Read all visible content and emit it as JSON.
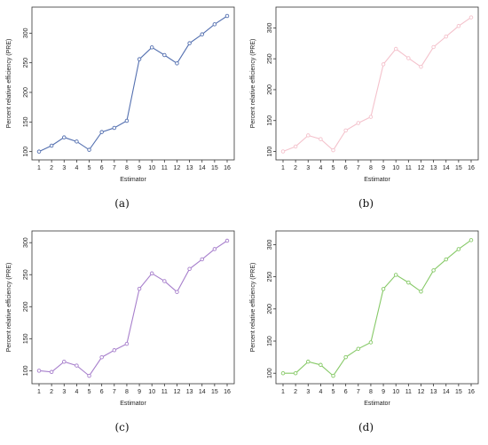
{
  "chart_data": [
    {
      "type": "line",
      "caption": "(a)",
      "color": "#5470b0",
      "xlabel": "Estimator",
      "ylabel": "Percent relative efficiency (PRE)",
      "x": [
        1,
        2,
        3,
        4,
        5,
        6,
        7,
        8,
        9,
        10,
        11,
        12,
        13,
        14,
        15,
        16
      ],
      "values": [
        100,
        110,
        124,
        117,
        103,
        133,
        140,
        152,
        256,
        276,
        263,
        249,
        283,
        298,
        315,
        329
      ],
      "xlim": [
        1,
        16
      ],
      "ylim": [
        95,
        335
      ],
      "yticks": [
        100,
        150,
        200,
        250,
        300
      ],
      "grid": false,
      "marker": "circle-open"
    },
    {
      "type": "line",
      "caption": "(b)",
      "color": "#f4c2cc",
      "xlabel": "Estimator",
      "ylabel": "Percent relative efficiency (PRE)",
      "x": [
        1,
        2,
        3,
        4,
        5,
        6,
        7,
        8,
        9,
        10,
        11,
        12,
        13,
        14,
        15,
        16
      ],
      "values": [
        100,
        108,
        126,
        120,
        102,
        134,
        146,
        156,
        241,
        266,
        251,
        237,
        269,
        286,
        303,
        317
      ],
      "xlim": [
        1,
        16
      ],
      "ylim": [
        95,
        325
      ],
      "yticks": [
        100,
        150,
        200,
        250,
        300
      ],
      "grid": false,
      "marker": "circle-open"
    },
    {
      "type": "line",
      "caption": "(c)",
      "color": "#a77fcc",
      "xlabel": "Estimator",
      "ylabel": "Percent relative efficiency (PRE)",
      "x": [
        1,
        2,
        3,
        4,
        5,
        6,
        7,
        8,
        9,
        10,
        11,
        12,
        13,
        14,
        15,
        16
      ],
      "values": [
        100,
        98,
        114,
        108,
        92,
        121,
        132,
        142,
        228,
        252,
        240,
        223,
        259,
        274,
        290,
        303
      ],
      "xlim": [
        1,
        16
      ],
      "ylim": [
        88,
        310
      ],
      "yticks": [
        100,
        150,
        200,
        250,
        300
      ],
      "grid": false,
      "marker": "circle-open"
    },
    {
      "type": "line",
      "caption": "(d)",
      "color": "#86c967",
      "xlabel": "Estimator",
      "ylabel": "Percent relative efficiency (PRE)",
      "x": [
        1,
        2,
        3,
        4,
        5,
        6,
        7,
        8,
        9,
        10,
        11,
        12,
        13,
        14,
        15,
        16
      ],
      "values": [
        100,
        100,
        118,
        113,
        96,
        125,
        138,
        148,
        231,
        253,
        241,
        227,
        260,
        277,
        293,
        307
      ],
      "xlim": [
        1,
        16
      ],
      "ylim": [
        92,
        313
      ],
      "yticks": [
        100,
        150,
        200,
        250,
        300
      ],
      "grid": false,
      "marker": "circle-open"
    }
  ]
}
